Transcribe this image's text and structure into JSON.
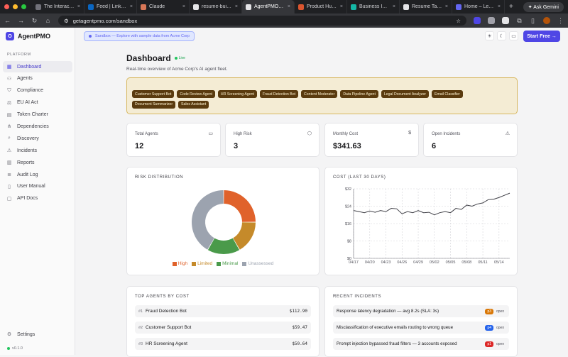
{
  "browser": {
    "tabs": [
      {
        "title": "The Interactive P",
        "color": "#71717a"
      },
      {
        "title": "Feed | LinkedIn",
        "color": "#0a66c2"
      },
      {
        "title": "Claude",
        "color": "#d97757"
      },
      {
        "title": "resume-builder",
        "color": "#e4e4e7"
      },
      {
        "title": "AgentPMO — AI",
        "color": "#e4e4e7",
        "active": true
      },
      {
        "title": "Product Hunt – T",
        "color": "#da552f"
      },
      {
        "title": "Business Idea Va",
        "color": "#14b8a6"
      },
      {
        "title": "Resume Tailor –",
        "color": "#e4e4e7"
      },
      {
        "title": "Home – Leclerc",
        "color": "#6366f1"
      }
    ],
    "new_tab": "+",
    "gemini_label": "Ask Gemini",
    "url": "getagentpmo.com/sandbox"
  },
  "sidebar": {
    "brand": "AgentPMO",
    "logo_letter": "O",
    "section_label": "PLATFORM",
    "items": [
      {
        "label": "Dashboard",
        "icon": "grid-icon",
        "glyph": "▦"
      },
      {
        "label": "Agents",
        "icon": "bot-icon",
        "glyph": "⚇"
      },
      {
        "label": "Compliance",
        "icon": "shield-icon",
        "glyph": "⛉"
      },
      {
        "label": "EU AI Act",
        "icon": "scale-icon",
        "glyph": "⚖"
      },
      {
        "label": "Token Charter",
        "icon": "document-icon",
        "glyph": "▤"
      },
      {
        "label": "Dependencies",
        "icon": "network-icon",
        "glyph": "⋔"
      },
      {
        "label": "Discovery",
        "icon": "search-icon",
        "glyph": "⌕"
      },
      {
        "label": "Incidents",
        "icon": "alert-icon",
        "glyph": "⚠"
      },
      {
        "label": "Reports",
        "icon": "report-icon",
        "glyph": "▥"
      },
      {
        "label": "Audit Log",
        "icon": "log-icon",
        "glyph": "≣"
      },
      {
        "label": "User Manual",
        "icon": "book-icon",
        "glyph": "▯"
      },
      {
        "label": "API Docs",
        "icon": "code-icon",
        "glyph": "▢"
      }
    ],
    "settings_label": "Settings",
    "version": "v0.1.0"
  },
  "topbar": {
    "sandbox_text": "Sandbox — Explore with sample data from Acme Corp",
    "start_label": "Start Free →"
  },
  "header": {
    "title": "Dashboard",
    "live": "Live",
    "subtitle": "Real-time overview of Acme Corp's AI agent fleet."
  },
  "banner": {
    "agents": [
      "Customer Support Bot",
      "Code Review Agent",
      "HR Screening Agent",
      "Fraud Detection Bot",
      "Content Moderator",
      "Data Pipeline Agent",
      "Legal Document Analyzer",
      "Email Classifier",
      "Document Summarizer",
      "Sales Assistant"
    ]
  },
  "kpis": [
    {
      "label": "Total Agents",
      "value": "12",
      "icon": "briefcase-icon",
      "glyph": "▭"
    },
    {
      "label": "High Risk",
      "value": "3",
      "icon": "shield-icon",
      "glyph": "⬡"
    },
    {
      "label": "Monthly Cost",
      "value": "$341.63",
      "icon": "dollar-icon",
      "glyph": "$"
    },
    {
      "label": "Open Incidents",
      "value": "6",
      "icon": "alert-icon",
      "glyph": "⚠"
    }
  ],
  "risk": {
    "title": "RISK DISTRIBUTION",
    "legend": [
      "High",
      "Limited",
      "Minimal",
      "Unassessed"
    ]
  },
  "cost": {
    "title": "COST (LAST 30 DAYS)"
  },
  "chart_data": [
    {
      "type": "pie",
      "labels": [
        "High",
        "Limited",
        "Minimal",
        "Unassessed"
      ],
      "values": [
        3,
        2,
        2,
        5
      ],
      "colors": [
        "#e0622b",
        "#c58a2a",
        "#4a9a4a",
        "#9ca3af"
      ]
    },
    {
      "type": "line",
      "y_tick_labels": [
        "$0",
        "$8",
        "$16",
        "$24",
        "$32"
      ],
      "x_tick_labels": [
        "04/17",
        "04/20",
        "04/23",
        "04/26",
        "04/29",
        "05/02",
        "05/05",
        "05/08",
        "05/11",
        "05/14"
      ],
      "ylim": [
        0,
        32
      ],
      "x": [
        "04/17",
        "04/18",
        "04/19",
        "04/20",
        "04/21",
        "04/22",
        "04/23",
        "04/24",
        "04/25",
        "04/26",
        "04/27",
        "04/28",
        "04/29",
        "04/30",
        "05/01",
        "05/02",
        "05/03",
        "05/04",
        "05/05",
        "05/06",
        "05/07",
        "05/08",
        "05/09",
        "05/10",
        "05/11",
        "05/12",
        "05/13",
        "05/14",
        "05/15",
        "05/16"
      ],
      "series": [
        {
          "values": [
            22,
            21.5,
            21,
            21.8,
            21.2,
            22,
            21.5,
            23,
            22.8,
            20.5,
            21.5,
            21,
            22,
            21,
            21.2,
            20,
            21,
            21.5,
            21,
            23,
            22.5,
            24.5,
            24,
            25,
            25.5,
            27,
            27.2,
            28,
            29,
            30
          ],
          "color": "#3f3f46"
        }
      ],
      "grid": true
    }
  ],
  "top_agents": {
    "title": "TOP AGENTS BY COST",
    "rows": [
      {
        "rank": "#1",
        "name": "Fraud Detection Bot",
        "cost": "$112.90"
      },
      {
        "rank": "#2",
        "name": "Customer Support Bot",
        "cost": "$59.47"
      },
      {
        "rank": "#3",
        "name": "HR Screening Agent",
        "cost": "$50.64"
      }
    ]
  },
  "incidents": {
    "title": "RECENT INCIDENTS",
    "rows": [
      {
        "title": "Response latency degradation — avg 8.2s (SLA: 3s)",
        "severity": "p3",
        "color": "#d97706",
        "status": "open"
      },
      {
        "title": "Misclassification of executive emails routing to wrong queue",
        "severity": "p4",
        "color": "#2563eb",
        "status": "open"
      },
      {
        "title": "Prompt injection bypassed fraud filters — 3 accounts exposed",
        "severity": "p1",
        "color": "#dc2626",
        "status": "open"
      }
    ]
  }
}
